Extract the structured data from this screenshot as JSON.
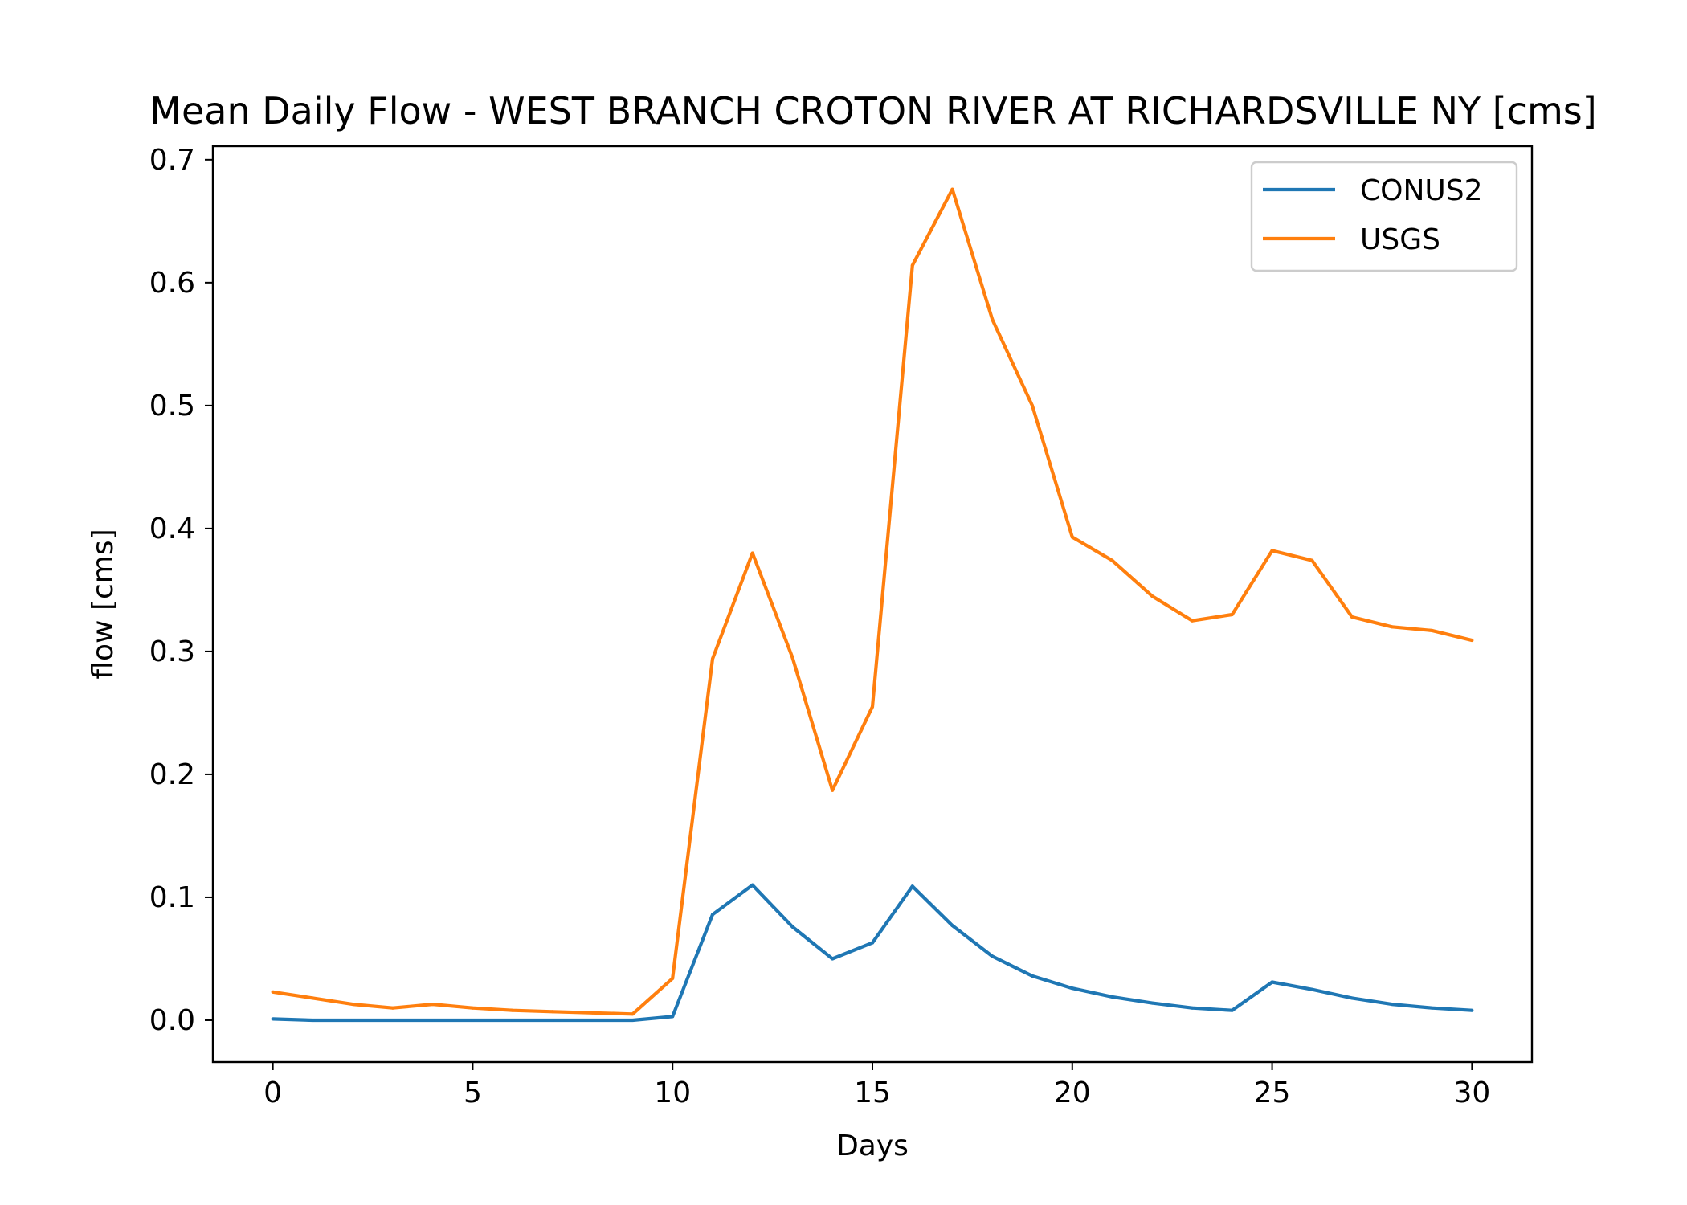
{
  "chart_data": {
    "type": "line",
    "title": "Mean Daily Flow - WEST BRANCH CROTON RIVER AT RICHARDSVILLE NY [cms]",
    "xlabel": "Days",
    "ylabel": "flow [cms]",
    "xlim": [
      -1.5,
      31.5
    ],
    "ylim": [
      -0.034,
      0.711
    ],
    "xticks": [
      0,
      5,
      10,
      15,
      20,
      25,
      30
    ],
    "yticks": [
      0.0,
      0.1,
      0.2,
      0.3,
      0.4,
      0.5,
      0.6,
      0.7
    ],
    "xtick_labels": [
      "0",
      "5",
      "10",
      "15",
      "20",
      "25",
      "30"
    ],
    "ytick_labels": [
      "0.0",
      "0.1",
      "0.2",
      "0.3",
      "0.4",
      "0.5",
      "0.6",
      "0.7"
    ],
    "grid": false,
    "legend_position": "top-right",
    "x": [
      0,
      1,
      2,
      3,
      4,
      5,
      6,
      7,
      8,
      9,
      10,
      11,
      12,
      13,
      14,
      15,
      16,
      17,
      18,
      19,
      20,
      21,
      22,
      23,
      24,
      25,
      26,
      27,
      28,
      29,
      30
    ],
    "series": [
      {
        "name": "CONUS2",
        "color": "#1f77b4",
        "values": [
          0.001,
          0.0,
          0.0,
          0.0,
          0.0,
          0.0,
          0.0,
          0.0,
          0.0,
          0.0,
          0.003,
          0.086,
          0.11,
          0.076,
          0.05,
          0.063,
          0.109,
          0.077,
          0.052,
          0.036,
          0.026,
          0.019,
          0.014,
          0.01,
          0.008,
          0.031,
          0.025,
          0.018,
          0.013,
          0.01,
          0.008
        ]
      },
      {
        "name": "USGS",
        "color": "#ff7f0e",
        "values": [
          0.023,
          0.018,
          0.013,
          0.01,
          0.013,
          0.01,
          0.008,
          0.007,
          0.006,
          0.005,
          0.034,
          0.294,
          0.38,
          0.295,
          0.187,
          0.255,
          0.614,
          0.676,
          0.57,
          0.5,
          0.393,
          0.374,
          0.345,
          0.325,
          0.33,
          0.382,
          0.374,
          0.328,
          0.32,
          0.317,
          0.309
        ]
      }
    ]
  }
}
